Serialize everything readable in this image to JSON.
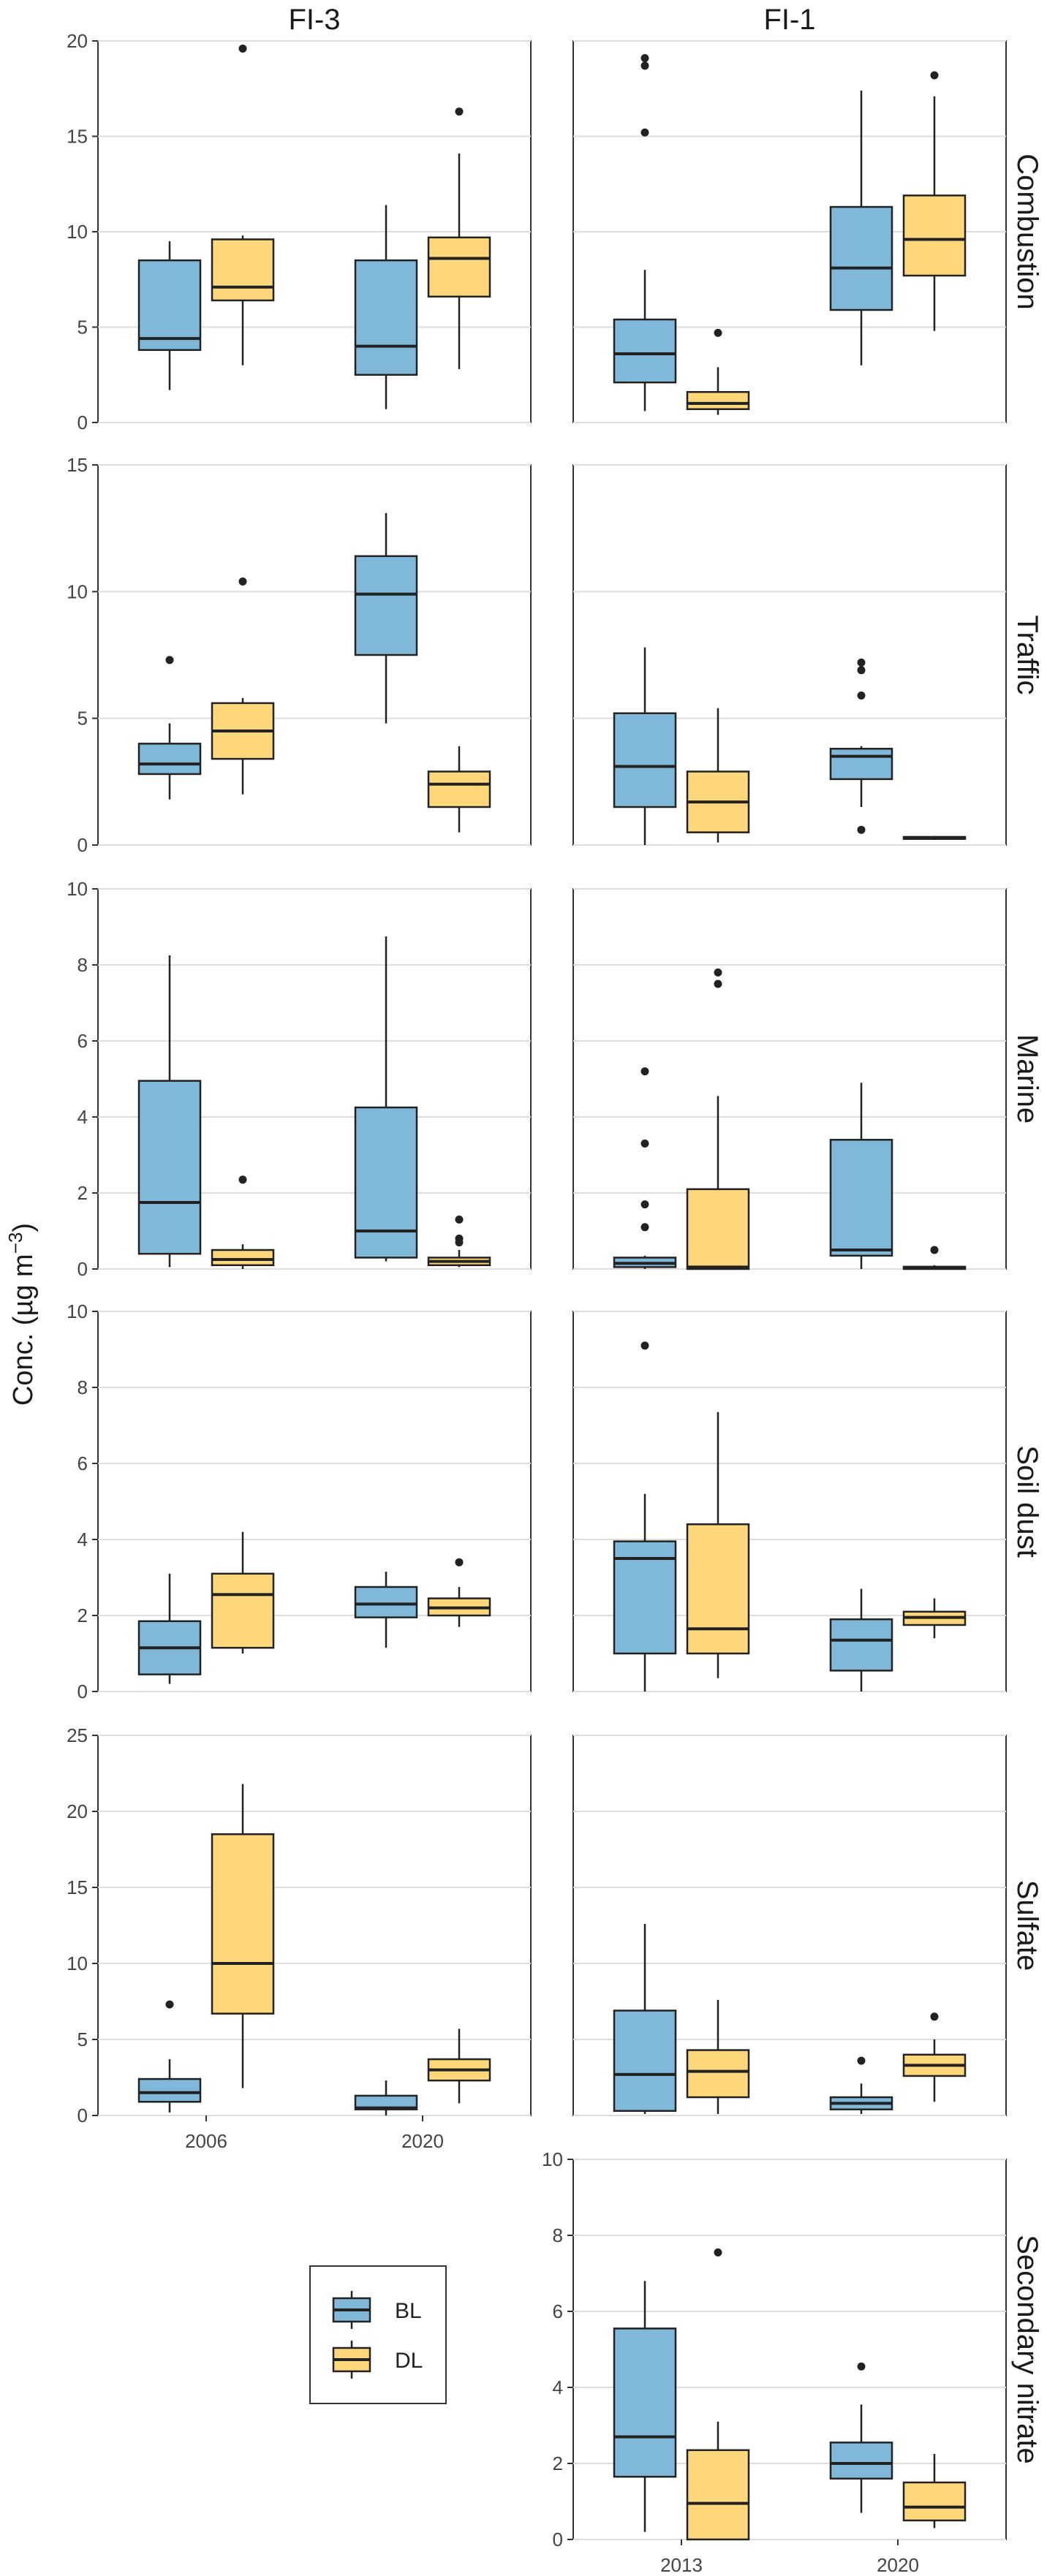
{
  "ylabel_main": "Conc. (µg m",
  "ylabel_exp": "−3",
  "ylabel_close": ")",
  "colors": {
    "BL": "#7fb8d9",
    "DL": "#fdd77a"
  },
  "legend": [
    {
      "key": "BL",
      "label": "BL"
    },
    {
      "key": "DL",
      "label": "DL"
    }
  ],
  "chart_data": {
    "type": "box",
    "facet_columns": [
      "FI-3",
      "FI-1"
    ],
    "facet_rows": [
      "Combustion",
      "Traffic",
      "Marine",
      "Soil dust",
      "Sulfate",
      "Secondary nitrate"
    ],
    "series": [
      "BL",
      "DL"
    ],
    "x_categories": {
      "FI-3": [
        "2006",
        "2020"
      ],
      "FI-1": [
        "2013",
        "2020"
      ]
    },
    "ylim": {
      "Combustion": [
        0,
        20
      ],
      "Traffic": [
        0,
        15
      ],
      "Marine": [
        0,
        10
      ],
      "Soil dust": [
        0,
        10
      ],
      "Sulfate": [
        0,
        25
      ],
      "Secondary nitrate": [
        0,
        10
      ]
    },
    "yticks": {
      "Combustion": [
        0,
        5,
        10,
        15,
        20
      ],
      "Traffic": [
        0,
        5,
        10,
        15
      ],
      "Marine": [
        0,
        2,
        4,
        6,
        8,
        10
      ],
      "Soil dust": [
        0,
        2,
        4,
        6,
        8,
        10
      ],
      "Sulfate": [
        0,
        5,
        10,
        15,
        20,
        25
      ],
      "Secondary nitrate": [
        0,
        2,
        4,
        6,
        8,
        10
      ]
    },
    "ytick_labels": {
      "Secondary nitrate": [
        "0",
        "2",
        "4",
        "6",
        "8",
        "10"
      ]
    },
    "panels": [
      {
        "row": "Combustion",
        "col": "FI-3",
        "boxes": [
          {
            "x": "2006",
            "series": "BL",
            "low": 1.7,
            "q1": 3.8,
            "median": 4.4,
            "q3": 8.5,
            "high": 9.5,
            "outliers": []
          },
          {
            "x": "2006",
            "series": "DL",
            "low": 3.0,
            "q1": 6.4,
            "median": 7.1,
            "q3": 9.6,
            "high": 9.8,
            "outliers": [
              19.6
            ]
          },
          {
            "x": "2020",
            "series": "BL",
            "low": 0.7,
            "q1": 2.5,
            "median": 4.0,
            "q3": 8.5,
            "high": 11.4,
            "outliers": []
          },
          {
            "x": "2020",
            "series": "DL",
            "low": 2.8,
            "q1": 6.6,
            "median": 8.6,
            "q3": 9.7,
            "high": 14.1,
            "outliers": [
              16.3
            ]
          }
        ]
      },
      {
        "row": "Combustion",
        "col": "FI-1",
        "boxes": [
          {
            "x": "2013",
            "series": "BL",
            "low": 0.6,
            "q1": 2.1,
            "median": 3.6,
            "q3": 5.4,
            "high": 8.0,
            "outliers": [
              15.2,
              18.7,
              19.1
            ]
          },
          {
            "x": "2013",
            "series": "DL",
            "low": 0.4,
            "q1": 0.7,
            "median": 1.0,
            "q3": 1.6,
            "high": 2.9,
            "outliers": [
              4.7
            ]
          },
          {
            "x": "2020",
            "series": "BL",
            "low": 3.0,
            "q1": 5.9,
            "median": 8.1,
            "q3": 11.3,
            "high": 17.4,
            "outliers": []
          },
          {
            "x": "2020",
            "series": "DL",
            "low": 4.8,
            "q1": 7.7,
            "median": 9.6,
            "q3": 11.9,
            "high": 17.1,
            "outliers": [
              18.2
            ]
          }
        ]
      },
      {
        "row": "Traffic",
        "col": "FI-3",
        "boxes": [
          {
            "x": "2006",
            "series": "BL",
            "low": 1.8,
            "q1": 2.8,
            "median": 3.2,
            "q3": 4.0,
            "high": 4.8,
            "outliers": [
              7.3
            ]
          },
          {
            "x": "2006",
            "series": "DL",
            "low": 2.0,
            "q1": 3.4,
            "median": 4.5,
            "q3": 5.6,
            "high": 5.8,
            "outliers": [
              10.4
            ]
          },
          {
            "x": "2020",
            "series": "BL",
            "low": 4.8,
            "q1": 7.5,
            "median": 9.9,
            "q3": 11.4,
            "high": 13.1,
            "outliers": []
          },
          {
            "x": "2020",
            "series": "DL",
            "low": 0.5,
            "q1": 1.5,
            "median": 2.4,
            "q3": 2.9,
            "high": 3.9,
            "outliers": []
          }
        ]
      },
      {
        "row": "Traffic",
        "col": "FI-1",
        "boxes": [
          {
            "x": "2013",
            "series": "BL",
            "low": 0.0,
            "q1": 1.5,
            "median": 3.1,
            "q3": 5.2,
            "high": 7.8,
            "outliers": []
          },
          {
            "x": "2013",
            "series": "DL",
            "low": 0.1,
            "q1": 0.5,
            "median": 1.7,
            "q3": 2.9,
            "high": 5.4,
            "outliers": []
          },
          {
            "x": "2020",
            "series": "BL",
            "low": 1.5,
            "q1": 2.6,
            "median": 3.5,
            "q3": 3.8,
            "high": 3.9,
            "outliers": [
              0.6,
              5.9,
              6.9,
              7.2
            ]
          },
          {
            "x": "2020",
            "series": "DL",
            "low": 0.2,
            "q1": 0.24,
            "median": 0.28,
            "q3": 0.32,
            "high": 0.36,
            "outliers": []
          }
        ]
      },
      {
        "row": "Marine",
        "col": "FI-3",
        "boxes": [
          {
            "x": "2006",
            "series": "BL",
            "low": 0.05,
            "q1": 0.4,
            "median": 1.75,
            "q3": 4.95,
            "high": 8.25,
            "outliers": []
          },
          {
            "x": "2006",
            "series": "DL",
            "low": 0.0,
            "q1": 0.1,
            "median": 0.25,
            "q3": 0.5,
            "high": 0.65,
            "outliers": [
              2.35
            ]
          },
          {
            "x": "2020",
            "series": "BL",
            "low": 0.2,
            "q1": 0.3,
            "median": 1.0,
            "q3": 4.25,
            "high": 8.75,
            "outliers": []
          },
          {
            "x": "2020",
            "series": "DL",
            "low": 0.05,
            "q1": 0.1,
            "median": 0.2,
            "q3": 0.3,
            "high": 0.5,
            "outliers": [
              0.7,
              0.8,
              1.3
            ]
          }
        ]
      },
      {
        "row": "Marine",
        "col": "FI-1",
        "boxes": [
          {
            "x": "2013",
            "series": "BL",
            "low": 0.0,
            "q1": 0.05,
            "median": 0.15,
            "q3": 0.3,
            "high": 0.35,
            "outliers": [
              1.1,
              1.7,
              3.3,
              5.2
            ]
          },
          {
            "x": "2013",
            "series": "DL",
            "low": 0.0,
            "q1": 0.0,
            "median": 0.05,
            "q3": 2.1,
            "high": 4.55,
            "outliers": [
              7.5,
              7.8
            ]
          },
          {
            "x": "2020",
            "series": "BL",
            "low": 0.0,
            "q1": 0.35,
            "median": 0.5,
            "q3": 3.4,
            "high": 4.9,
            "outliers": []
          },
          {
            "x": "2020",
            "series": "DL",
            "low": 0.0,
            "q1": 0.0,
            "median": 0.02,
            "q3": 0.06,
            "high": 0.1,
            "outliers": [
              0.5
            ]
          }
        ]
      },
      {
        "row": "Soil dust",
        "col": "FI-3",
        "boxes": [
          {
            "x": "2006",
            "series": "BL",
            "low": 0.2,
            "q1": 0.45,
            "median": 1.15,
            "q3": 1.85,
            "high": 3.1,
            "outliers": []
          },
          {
            "x": "2006",
            "series": "DL",
            "low": 1.0,
            "q1": 1.15,
            "median": 2.55,
            "q3": 3.1,
            "high": 4.2,
            "outliers": []
          },
          {
            "x": "2020",
            "series": "BL",
            "low": 1.15,
            "q1": 1.95,
            "median": 2.3,
            "q3": 2.75,
            "high": 3.15,
            "outliers": []
          },
          {
            "x": "2020",
            "series": "DL",
            "low": 1.7,
            "q1": 2.0,
            "median": 2.2,
            "q3": 2.45,
            "high": 2.75,
            "outliers": [
              3.4
            ]
          }
        ]
      },
      {
        "row": "Soil dust",
        "col": "FI-1",
        "boxes": [
          {
            "x": "2013",
            "series": "BL",
            "low": 0.0,
            "q1": 1.0,
            "median": 3.5,
            "q3": 3.95,
            "high": 5.2,
            "outliers": [
              9.1
            ]
          },
          {
            "x": "2013",
            "series": "DL",
            "low": 0.35,
            "q1": 1.0,
            "median": 1.65,
            "q3": 4.4,
            "high": 7.35,
            "outliers": []
          },
          {
            "x": "2020",
            "series": "BL",
            "low": 0.0,
            "q1": 0.55,
            "median": 1.35,
            "q3": 1.9,
            "high": 2.7,
            "outliers": []
          },
          {
            "x": "2020",
            "series": "DL",
            "low": 1.4,
            "q1": 1.75,
            "median": 1.95,
            "q3": 2.1,
            "high": 2.45,
            "outliers": []
          }
        ]
      },
      {
        "row": "Sulfate",
        "col": "FI-3",
        "boxes": [
          {
            "x": "2006",
            "series": "BL",
            "low": 0.2,
            "q1": 0.9,
            "median": 1.5,
            "q3": 2.4,
            "high": 3.7,
            "outliers": [
              7.3
            ]
          },
          {
            "x": "2006",
            "series": "DL",
            "low": 1.8,
            "q1": 6.7,
            "median": 10.0,
            "q3": 18.5,
            "high": 21.8,
            "outliers": []
          },
          {
            "x": "2020",
            "series": "BL",
            "low": 0.0,
            "q1": 0.4,
            "median": 0.5,
            "q3": 1.3,
            "high": 2.3,
            "outliers": []
          },
          {
            "x": "2020",
            "series": "DL",
            "low": 0.8,
            "q1": 2.3,
            "median": 3.0,
            "q3": 3.7,
            "high": 5.7,
            "outliers": []
          }
        ]
      },
      {
        "row": "Sulfate",
        "col": "FI-1",
        "boxes": [
          {
            "x": "2013",
            "series": "BL",
            "low": 0.1,
            "q1": 0.3,
            "median": 2.7,
            "q3": 6.9,
            "high": 12.6,
            "outliers": []
          },
          {
            "x": "2013",
            "series": "DL",
            "low": 0.1,
            "q1": 1.2,
            "median": 2.9,
            "q3": 4.3,
            "high": 7.6,
            "outliers": []
          },
          {
            "x": "2020",
            "series": "BL",
            "low": 0.1,
            "q1": 0.4,
            "median": 0.8,
            "q3": 1.2,
            "high": 2.1,
            "outliers": [
              3.6
            ]
          },
          {
            "x": "2020",
            "series": "DL",
            "low": 0.9,
            "q1": 2.6,
            "median": 3.3,
            "q3": 4.0,
            "high": 5.0,
            "outliers": [
              6.5
            ]
          }
        ]
      },
      {
        "row": "Secondary nitrate",
        "col": "FI-1",
        "boxes": [
          {
            "x": "2013",
            "series": "BL",
            "low": 0.2,
            "q1": 1.65,
            "median": 2.7,
            "q3": 5.55,
            "high": 6.8,
            "outliers": []
          },
          {
            "x": "2013",
            "series": "DL",
            "low": 0.0,
            "q1": 0.0,
            "median": 0.95,
            "q3": 2.35,
            "high": 3.1,
            "outliers": [
              7.55
            ]
          },
          {
            "x": "2020",
            "series": "BL",
            "low": 0.7,
            "q1": 1.6,
            "median": 2.0,
            "q3": 2.55,
            "high": 3.55,
            "outliers": [
              4.55
            ]
          },
          {
            "x": "2020",
            "series": "DL",
            "low": 0.3,
            "q1": 0.5,
            "median": 0.85,
            "q3": 1.5,
            "high": 2.25,
            "outliers": []
          }
        ]
      }
    ]
  }
}
